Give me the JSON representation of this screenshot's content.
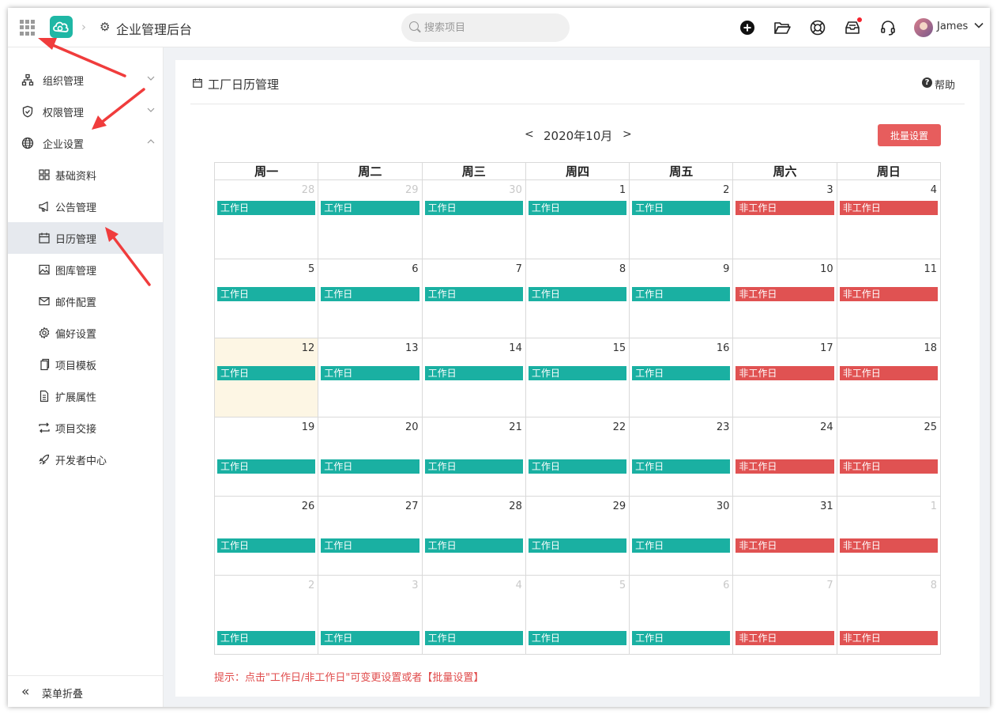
{
  "topbar": {
    "title": "企业管理后台",
    "search_placeholder": "搜索项目",
    "user_name": "James"
  },
  "sidebar": {
    "items": [
      {
        "label": "组织管理",
        "icon": "org-icon",
        "level": 1,
        "expanded": false
      },
      {
        "label": "权限管理",
        "icon": "shield-icon",
        "level": 1,
        "expanded": false
      },
      {
        "label": "企业设置",
        "icon": "globe-icon",
        "level": 1,
        "expanded": true
      },
      {
        "label": "基础资料",
        "icon": "grid-icon",
        "level": 2
      },
      {
        "label": "公告管理",
        "icon": "megaphone-icon",
        "level": 2
      },
      {
        "label": "日历管理",
        "icon": "calendar-icon",
        "level": 2,
        "active": true
      },
      {
        "label": "图库管理",
        "icon": "image-icon",
        "level": 2
      },
      {
        "label": "邮件配置",
        "icon": "mail-icon",
        "level": 2
      },
      {
        "label": "偏好设置",
        "icon": "gear-icon",
        "level": 2
      },
      {
        "label": "项目模板",
        "icon": "copy-icon",
        "level": 2
      },
      {
        "label": "扩展属性",
        "icon": "doc-icon",
        "level": 2
      },
      {
        "label": "项目交接",
        "icon": "swap-icon",
        "level": 2
      },
      {
        "label": "开发者中心",
        "icon": "rocket-icon",
        "level": 2
      }
    ],
    "collapse_label": "菜单折叠"
  },
  "panel": {
    "title": "工厂日历管理",
    "help_label": "帮助",
    "prev": "<",
    "next": ">",
    "month_label": "2020年10月",
    "batch_button": "批量设置",
    "hint": "提示：点击\"工作日/非工作日\"可变更设置或者【批量设置】"
  },
  "calendar": {
    "weekdays": [
      "周一",
      "周二",
      "周三",
      "周四",
      "周五",
      "周六",
      "周日"
    ],
    "work_label": "工作日",
    "off_label": "非工作日",
    "today": 12,
    "weeks": [
      [
        {
          "day": 28,
          "current": false,
          "work": true
        },
        {
          "day": 29,
          "current": false,
          "work": true
        },
        {
          "day": 30,
          "current": false,
          "work": true
        },
        {
          "day": 1,
          "current": true,
          "work": true
        },
        {
          "day": 2,
          "current": true,
          "work": true
        },
        {
          "day": 3,
          "current": true,
          "work": false
        },
        {
          "day": 4,
          "current": true,
          "work": false
        }
      ],
      [
        {
          "day": 5,
          "current": true,
          "work": true
        },
        {
          "day": 6,
          "current": true,
          "work": true
        },
        {
          "day": 7,
          "current": true,
          "work": true
        },
        {
          "day": 8,
          "current": true,
          "work": true
        },
        {
          "day": 9,
          "current": true,
          "work": true
        },
        {
          "day": 10,
          "current": true,
          "work": false
        },
        {
          "day": 11,
          "current": true,
          "work": false
        }
      ],
      [
        {
          "day": 12,
          "current": true,
          "work": true
        },
        {
          "day": 13,
          "current": true,
          "work": true
        },
        {
          "day": 14,
          "current": true,
          "work": true
        },
        {
          "day": 15,
          "current": true,
          "work": true
        },
        {
          "day": 16,
          "current": true,
          "work": true
        },
        {
          "day": 17,
          "current": true,
          "work": false
        },
        {
          "day": 18,
          "current": true,
          "work": false
        }
      ],
      [
        {
          "day": 19,
          "current": true,
          "work": true
        },
        {
          "day": 20,
          "current": true,
          "work": true
        },
        {
          "day": 21,
          "current": true,
          "work": true
        },
        {
          "day": 22,
          "current": true,
          "work": true
        },
        {
          "day": 23,
          "current": true,
          "work": true
        },
        {
          "day": 24,
          "current": true,
          "work": false
        },
        {
          "day": 25,
          "current": true,
          "work": false
        }
      ],
      [
        {
          "day": 26,
          "current": true,
          "work": true
        },
        {
          "day": 27,
          "current": true,
          "work": true
        },
        {
          "day": 28,
          "current": true,
          "work": true
        },
        {
          "day": 29,
          "current": true,
          "work": true
        },
        {
          "day": 30,
          "current": true,
          "work": true
        },
        {
          "day": 31,
          "current": true,
          "work": false
        },
        {
          "day": 1,
          "current": false,
          "work": false
        }
      ],
      [
        {
          "day": 2,
          "current": false,
          "work": true
        },
        {
          "day": 3,
          "current": false,
          "work": true
        },
        {
          "day": 4,
          "current": false,
          "work": true
        },
        {
          "day": 5,
          "current": false,
          "work": true
        },
        {
          "day": 6,
          "current": false,
          "work": true
        },
        {
          "day": 7,
          "current": false,
          "work": false
        },
        {
          "day": 8,
          "current": false,
          "work": false
        }
      ]
    ]
  },
  "colors": {
    "work": "#1ab0a2",
    "off": "#e05252",
    "accent_button": "#e75d5d",
    "annotation_arrow": "#f03c3c",
    "today_bg": "#fdf6e4"
  }
}
